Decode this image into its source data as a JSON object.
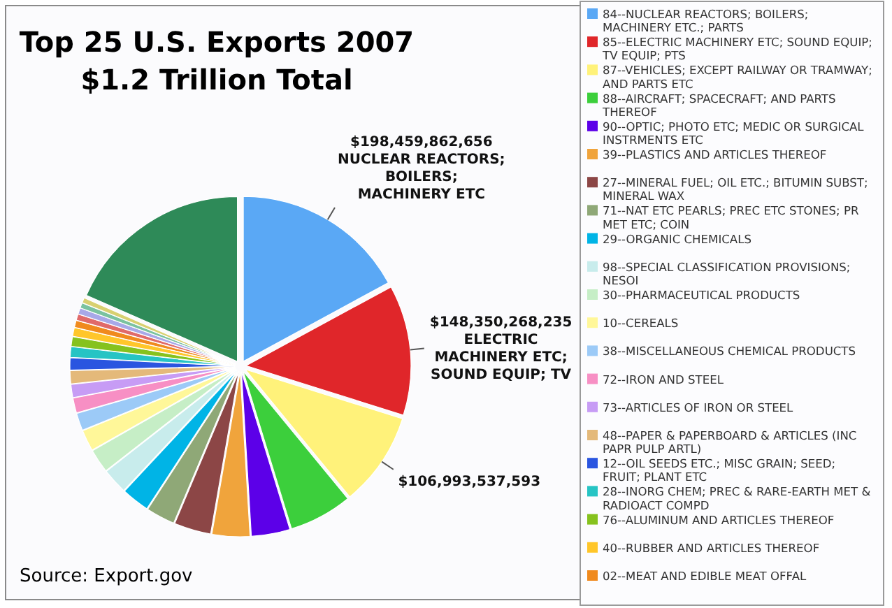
{
  "chart_data": {
    "type": "pie",
    "title": "Top 25 U.S. Exports 2007",
    "subtitle": "$1.2 Trillion Total",
    "categories": [
      "84--NUCLEAR REACTORS; BOILERS; MACHINERY ETC.; PARTS",
      "85--ELECTRIC MACHINERY ETC; SOUND EQUIP; TV EQUIP; PTS",
      "87--VEHICLES; EXCEPT RAILWAY OR TRAMWAY; AND PARTS ETC",
      "88--AIRCRAFT; SPACECRAFT; AND PARTS THEREOF",
      "90--OPTIC; PHOTO ETC; MEDIC OR SURGICAL INSTRMENTS ETC",
      "39--PLASTICS AND ARTICLES THEREOF",
      "27--MINERAL FUEL; OIL ETC.; BITUMIN SUBST; MINERAL WAX",
      "71--NAT ETC PEARLS; PREC ETC STONES; PR MET ETC; COIN",
      "29--ORGANIC CHEMICALS",
      "98--SPECIAL CLASSIFICATION PROVISIONS; NESOI",
      "30--PHARMACEUTICAL PRODUCTS",
      "10--CEREALS",
      "38--MISCELLANEOUS CHEMICAL PRODUCTS",
      "72--IRON AND STEEL",
      "73--ARTICLES OF IRON OR STEEL",
      "48--PAPER & PAPERBOARD & ARTICLES (INC PAPR PULP ARTL)",
      "12--OIL SEEDS ETC.; MISC GRAIN; SEED; FRUIT; PLANT ETC",
      "28--INORG CHEM; PREC & RARE-EARTH MET & RADIOACT COMPD",
      "76--ALUMINUM AND ARTICLES THEREOF",
      "40--RUBBER AND ARTICLES THEREOF",
      "02--MEAT AND EDIBLE MEAT OFFAL",
      null,
      null,
      null,
      null,
      null
    ],
    "values": [
      198459862656,
      148350268235,
      106993537593,
      72000000000,
      44000000000,
      43000000000,
      42000000000,
      33000000000,
      32000000000,
      29000000000,
      27000000000,
      24000000000,
      20000000000,
      17000000000,
      15000000000,
      15000000000,
      14000000000,
      12000000000,
      11000000000,
      10000000000,
      8000000000,
      7000000000,
      7000000000,
      6000000000,
      6000000000,
      214000000000
    ],
    "colors": [
      "#5aa8f5",
      "#e0262a",
      "#fff27a",
      "#3ccf3c",
      "#5c00e8",
      "#f0a43c",
      "#8c4646",
      "#8fa877",
      "#00b4e6",
      "#c8ecec",
      "#c6eec6",
      "#fff799",
      "#9ccaf7",
      "#f78fc4",
      "#c79cf5",
      "#e4b97a",
      "#2a55e0",
      "#26c4c4",
      "#86c21e",
      "#ffc62a",
      "#f08a1e",
      "#e06a6a",
      "#a8a8e8",
      "#7ac2a0",
      "#d8d070",
      "#2e8a58"
    ],
    "value_labels": [
      "$198,459,862,656\nNUCLEAR REACTORS;\nBOILERS;\nMACHINERY ETC",
      "$148,350,268,235\nELECTRIC\nMACHINERY ETC;\nSOUND EQUIP; TV",
      "$106,993,537,593",
      null,
      null,
      null,
      null,
      null,
      null,
      null,
      null,
      null,
      null,
      null,
      null,
      null,
      null,
      null,
      null,
      null,
      null,
      null,
      null,
      null,
      null,
      null
    ],
    "legend": "right",
    "annotations": [
      "Source: Export.gov"
    ]
  }
}
